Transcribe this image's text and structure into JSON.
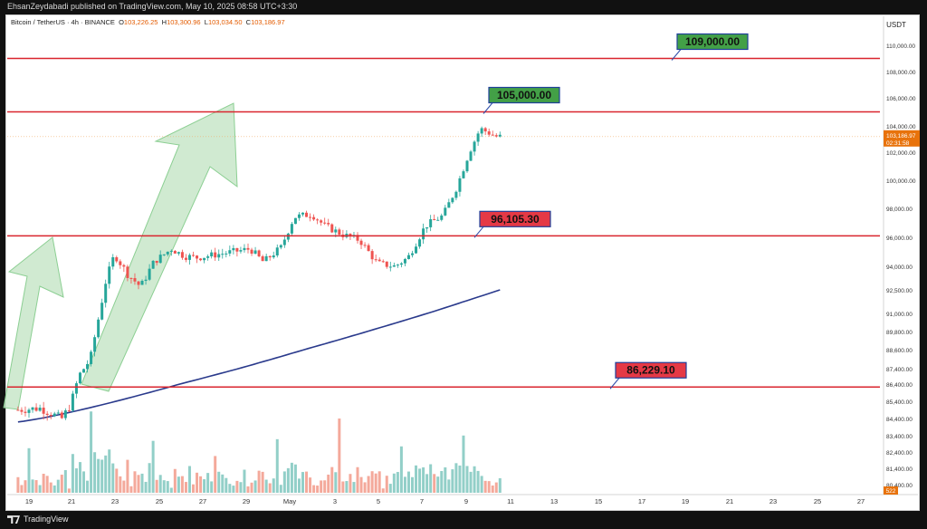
{
  "header": {
    "published": "EhsanZeydabadi published on TradingView.com, May 10, 2025 08:58 UTC+3:30",
    "symbol": "Bitcoin / TetherUS · 4h · BINANCE",
    "ohlc": {
      "o_label": "O",
      "o": "103,226.25",
      "h_label": "H",
      "h": "103,300.96",
      "l_label": "L",
      "l": "103,034.50",
      "c_label": "C",
      "c": "103,186.97"
    }
  },
  "footer": {
    "brand": "TradingView"
  },
  "colors": {
    "up": "#26a69a",
    "down": "#ef5350",
    "up_vol": "#92cfc8",
    "down_vol": "#f4a99b",
    "ma": "#2a3a8c",
    "level": "#d9252e",
    "green_label": "#43a047",
    "red_label": "#e53945",
    "price_tag": "#e8730c",
    "arrow": "#c8e6c9",
    "arrow_edge": "#8ccf93"
  },
  "chart_data": {
    "type": "candlestick",
    "quote_currency": "USDT",
    "y_ticks": [
      "110,000.00",
      "108,000.00",
      "106,000.00",
      "104,000.00",
      "102,000.00",
      "100,000.00",
      "98,000.00",
      "96,000.00",
      "94,000.00",
      "92,500.00",
      "91,000.00",
      "89,800.00",
      "88,600.00",
      "87,400.00",
      "86,400.00",
      "85,400.00",
      "84,400.00",
      "83,400.00",
      "82,400.00",
      "81,400.00",
      "80,400.00"
    ],
    "x_ticks": [
      "19",
      "21",
      "23",
      "25",
      "27",
      "29",
      "May",
      "3",
      "5",
      "7",
      "9",
      "11",
      "13",
      "15",
      "17",
      "19",
      "21",
      "23",
      "25",
      "27"
    ],
    "current_price": {
      "price": "103,186.97",
      "countdown": "02:31:58"
    },
    "levels": [
      {
        "price": "109,000.00",
        "label": "109,000.00",
        "kind": "resistance"
      },
      {
        "price": "105,000.00",
        "label": "105,000.00",
        "kind": "resistance"
      },
      {
        "price": "96,105.30",
        "label": "96,105.30",
        "kind": "support"
      },
      {
        "price": "86,229.10",
        "label": "86,229.10",
        "kind": "support"
      }
    ],
    "moving_average": {
      "start": 84200,
      "end": 92500,
      "shape": "rising"
    },
    "candles": {
      "start": "Apr 18",
      "end": "May 10",
      "interval": "4h",
      "low": 84000,
      "high": 104400
    },
    "volume_badge": "522",
    "arrows": 3
  }
}
